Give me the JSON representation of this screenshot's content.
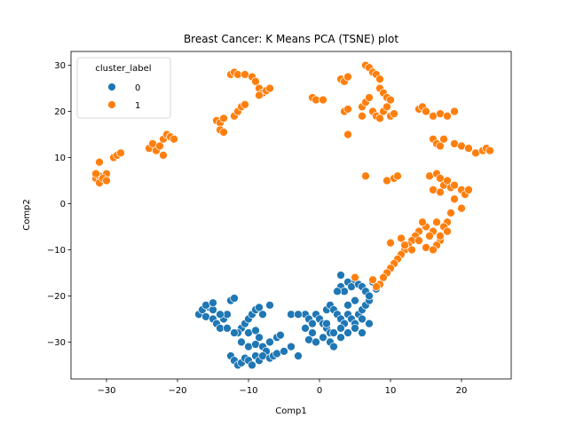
{
  "chart_data": {
    "type": "scatter",
    "title": "Breast Cancer: K Means PCA (TSNE) plot",
    "xlabel": "Comp1",
    "ylabel": "Comp2",
    "xlim": [
      -35,
      27
    ],
    "ylim": [
      -38,
      33
    ],
    "xticks": [
      -30,
      -20,
      -10,
      0,
      10,
      20
    ],
    "yticks": [
      -30,
      -20,
      -10,
      0,
      10,
      20,
      30
    ],
    "grid": false,
    "legend": {
      "title": "cluster_label",
      "placement": "top-left"
    },
    "series": [
      {
        "name": "0",
        "color": "#1f77b4",
        "points": [
          [
            -17,
            -24
          ],
          [
            -16.5,
            -23
          ],
          [
            -16,
            -24.5
          ],
          [
            -15.5,
            -22.5
          ],
          [
            -15,
            -25
          ],
          [
            -14.5,
            -26
          ],
          [
            -16,
            -22
          ],
          [
            -14,
            -27
          ],
          [
            -13.5,
            -25
          ],
          [
            -13,
            -24
          ],
          [
            -12.5,
            -21
          ],
          [
            -12,
            -20.5
          ],
          [
            -14,
            -24
          ],
          [
            -15,
            -23
          ],
          [
            -11,
            -27
          ],
          [
            -10.5,
            -26
          ],
          [
            -10,
            -25
          ],
          [
            -9.5,
            -24
          ],
          [
            -9,
            -23
          ],
          [
            -8.5,
            -22.5
          ],
          [
            -8,
            -24
          ],
          [
            -11.5,
            -28
          ],
          [
            -10,
            -28
          ],
          [
            -9,
            -27.5
          ],
          [
            -8.5,
            -29
          ],
          [
            -12,
            -28
          ],
          [
            -11,
            -30
          ],
          [
            -10,
            -31
          ],
          [
            -9,
            -30.5
          ],
          [
            -8,
            -31
          ],
          [
            -7,
            -30
          ],
          [
            -6,
            -29
          ],
          [
            -5.5,
            -28.5
          ],
          [
            -7.5,
            -32
          ],
          [
            -12.5,
            -33
          ],
          [
            -12,
            -34
          ],
          [
            -11.5,
            -35
          ],
          [
            -11,
            -34.5
          ],
          [
            -10.5,
            -33.5
          ],
          [
            -10,
            -34
          ],
          [
            -9,
            -33
          ],
          [
            -8.5,
            -34
          ],
          [
            -8,
            -33
          ],
          [
            -7,
            -33.5
          ],
          [
            -6.5,
            -33
          ],
          [
            -6,
            -32.5
          ],
          [
            -5,
            -32
          ],
          [
            -4,
            -31
          ],
          [
            -3,
            -33
          ],
          [
            -4,
            -24
          ],
          [
            -2,
            -24
          ],
          [
            -1.5,
            -25
          ],
          [
            -1,
            -26
          ],
          [
            -0.5,
            -24
          ],
          [
            0,
            -25
          ],
          [
            0.5,
            -26
          ],
          [
            1,
            -27
          ],
          [
            1.5,
            -28
          ],
          [
            -1,
            -28
          ],
          [
            -2,
            -27
          ],
          [
            -1.5,
            -29.5
          ],
          [
            -0.5,
            -30
          ],
          [
            0.5,
            -29
          ],
          [
            1,
            -23
          ],
          [
            1.5,
            -22
          ],
          [
            2,
            -23
          ],
          [
            2.5,
            -24
          ],
          [
            3,
            -25
          ],
          [
            3.5,
            -26
          ],
          [
            4,
            -24
          ],
          [
            4.5,
            -25
          ],
          [
            5,
            -26
          ],
          [
            5.5,
            -24
          ],
          [
            6,
            -23
          ],
          [
            6.5,
            -22
          ],
          [
            7,
            -21
          ],
          [
            5,
            -21
          ],
          [
            4,
            -22
          ],
          [
            3,
            -27
          ],
          [
            2,
            -28
          ],
          [
            3,
            -29
          ],
          [
            4,
            -28
          ],
          [
            5,
            -27
          ],
          [
            6,
            -28
          ],
          [
            7,
            -26
          ],
          [
            3,
            -18
          ],
          [
            3.5,
            -19
          ],
          [
            4,
            -17
          ],
          [
            4.5,
            -18
          ],
          [
            5,
            -16.5
          ],
          [
            5.5,
            -17.5
          ],
          [
            6,
            -18
          ],
          [
            6.5,
            -19
          ],
          [
            7,
            -20
          ],
          [
            6,
            -25
          ],
          [
            7.5,
            -17
          ],
          [
            8,
            -18.5
          ],
          [
            3,
            -15.5
          ],
          [
            2.5,
            -19
          ],
          [
            1.5,
            -30
          ],
          [
            2,
            -31
          ],
          [
            -9.5,
            -35
          ],
          [
            -13,
            -27
          ],
          [
            -15,
            -21.5
          ],
          [
            -7,
            -22
          ],
          [
            -3,
            -24
          ],
          [
            1,
            -26
          ]
        ]
      },
      {
        "name": "1",
        "color": "#ff7f0e",
        "points": [
          [
            -31.5,
            5.5
          ],
          [
            -31,
            6
          ],
          [
            -30.5,
            5
          ],
          [
            -30,
            6.5
          ],
          [
            -31,
            4.5
          ],
          [
            -30.5,
            5.5
          ],
          [
            -31.5,
            6.5
          ],
          [
            -30,
            5
          ],
          [
            -31,
            9
          ],
          [
            -29,
            10
          ],
          [
            -28.5,
            10.5
          ],
          [
            -28,
            11
          ],
          [
            -24,
            12
          ],
          [
            -23.5,
            13
          ],
          [
            -23,
            11.5
          ],
          [
            -22.5,
            12.5
          ],
          [
            -22,
            14
          ],
          [
            -21.5,
            15
          ],
          [
            -21,
            14.5
          ],
          [
            -20.5,
            14
          ],
          [
            -22,
            10.5
          ],
          [
            -14.5,
            18
          ],
          [
            -14,
            17.5
          ],
          [
            -13.5,
            18.5
          ],
          [
            -14,
            16
          ],
          [
            -13.5,
            15.5
          ],
          [
            -12.5,
            28
          ],
          [
            -12,
            28.5
          ],
          [
            -11.5,
            28
          ],
          [
            -10.5,
            28
          ],
          [
            -9.5,
            27.5
          ],
          [
            -9,
            26.5
          ],
          [
            -8.5,
            25
          ],
          [
            -8,
            24
          ],
          [
            -7.5,
            24.5
          ],
          [
            -7,
            25
          ],
          [
            -8.5,
            23.5
          ],
          [
            -12,
            19
          ],
          [
            -11.5,
            20
          ],
          [
            -11,
            21
          ],
          [
            -10.5,
            21.5
          ],
          [
            -1,
            23
          ],
          [
            -0.5,
            22.5
          ],
          [
            0.5,
            22.5
          ],
          [
            3,
            27
          ],
          [
            3.5,
            26.5
          ],
          [
            4,
            27.5
          ],
          [
            3.5,
            20
          ],
          [
            4,
            20.5
          ],
          [
            4,
            15
          ],
          [
            6,
            21
          ],
          [
            6.5,
            22
          ],
          [
            7,
            23
          ],
          [
            7.5,
            20
          ],
          [
            8,
            19
          ],
          [
            8.5,
            18.5
          ],
          [
            9,
            20
          ],
          [
            9.5,
            21
          ],
          [
            10,
            19
          ],
          [
            10.5,
            19.5
          ],
          [
            6.5,
            30
          ],
          [
            7,
            29.5
          ],
          [
            7.5,
            28.5
          ],
          [
            8,
            28
          ],
          [
            8.5,
            27
          ],
          [
            8.5,
            25
          ],
          [
            9,
            24
          ],
          [
            9.5,
            23
          ],
          [
            10,
            22.5
          ],
          [
            6,
            19
          ],
          [
            14,
            20.5
          ],
          [
            14.5,
            21
          ],
          [
            15,
            20
          ],
          [
            16,
            19
          ],
          [
            17,
            19.5
          ],
          [
            18,
            19
          ],
          [
            19,
            20
          ],
          [
            16,
            14
          ],
          [
            16.5,
            13
          ],
          [
            17,
            12.5
          ],
          [
            17.5,
            14
          ],
          [
            19,
            13
          ],
          [
            20,
            12.5
          ],
          [
            21,
            12
          ],
          [
            22,
            11
          ],
          [
            23,
            11.5
          ],
          [
            23.5,
            12
          ],
          [
            24,
            11.5
          ],
          [
            6.5,
            6
          ],
          [
            9.5,
            5
          ],
          [
            10.5,
            5.5
          ],
          [
            11,
            6
          ],
          [
            15.5,
            6
          ],
          [
            16.5,
            6.5
          ],
          [
            17,
            5.5
          ],
          [
            17.5,
            4
          ],
          [
            18,
            5
          ],
          [
            18.5,
            3.5
          ],
          [
            19,
            4
          ],
          [
            20,
            3
          ],
          [
            20.5,
            2
          ],
          [
            21,
            3
          ],
          [
            16,
            3
          ],
          [
            17,
            2.5
          ],
          [
            19,
            1
          ],
          [
            20,
            -1
          ],
          [
            18.5,
            -2
          ],
          [
            18,
            -4
          ],
          [
            17.5,
            -5
          ],
          [
            16.5,
            -4
          ],
          [
            16,
            -6
          ],
          [
            15.5,
            -7
          ],
          [
            15,
            -5
          ],
          [
            14.5,
            -4
          ],
          [
            14,
            -6
          ],
          [
            13.5,
            -7
          ],
          [
            13,
            -8
          ],
          [
            12.5,
            -9
          ],
          [
            12,
            -10
          ],
          [
            11.5,
            -11
          ],
          [
            11,
            -12
          ],
          [
            10.5,
            -13
          ],
          [
            10,
            -14
          ],
          [
            9.5,
            -15
          ],
          [
            17,
            -8
          ],
          [
            16.5,
            -9
          ],
          [
            10,
            -8.5
          ],
          [
            11.5,
            -7.5
          ],
          [
            12,
            -9
          ],
          [
            13,
            -10
          ],
          [
            14,
            -8
          ],
          [
            15,
            -9.5
          ],
          [
            9,
            -16
          ],
          [
            8.5,
            -17.5
          ],
          [
            8,
            -18
          ],
          [
            7.5,
            -16.5
          ],
          [
            5,
            -16
          ],
          [
            16,
            -10
          ],
          [
            17,
            -7
          ],
          [
            18,
            -6
          ]
        ]
      }
    ]
  }
}
